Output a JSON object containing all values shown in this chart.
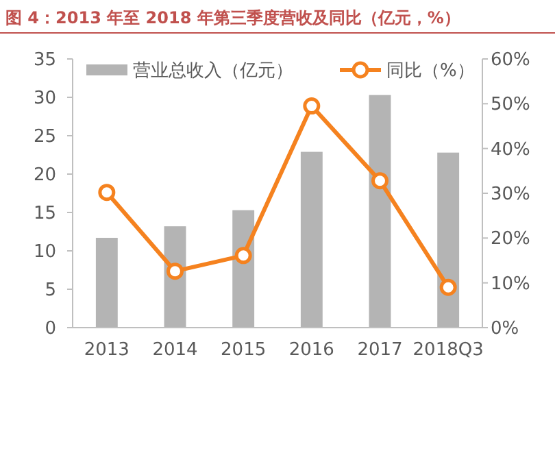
{
  "chart_data": {
    "type": "bar",
    "title": "图 4：2013 年至 2018 年第三季度营收及同比（亿元，%）",
    "categories": [
      "2013",
      "2014",
      "2015",
      "2016",
      "2017",
      "2018Q3"
    ],
    "series": [
      {
        "name": "营业总收入（亿元）",
        "color": "#b4b4b4",
        "values": [
          11.7,
          13.2,
          15.3,
          22.9,
          30.3,
          22.8
        ]
      },
      {
        "name": "同比（%）",
        "type": "line",
        "axis": "y2",
        "color": "#f5821f",
        "marker": "circle",
        "values": [
          30.2,
          12.6,
          16.1,
          49.5,
          32.8,
          9.0
        ]
      }
    ],
    "ylim": [
      0,
      35
    ],
    "yticks": [
      0,
      5,
      10,
      15,
      20,
      25,
      30,
      35
    ],
    "y2lim": [
      0,
      60
    ],
    "y2ticks": [
      {
        "value": 0,
        "label": "0%"
      },
      {
        "value": 10,
        "label": "10%"
      },
      {
        "value": 20,
        "label": "20%"
      },
      {
        "value": 30,
        "label": "30%"
      },
      {
        "value": 40,
        "label": "40%"
      },
      {
        "value": 50,
        "label": "50%"
      },
      {
        "value": 60,
        "label": "60%"
      }
    ],
    "legend": "top",
    "grid": false
  }
}
